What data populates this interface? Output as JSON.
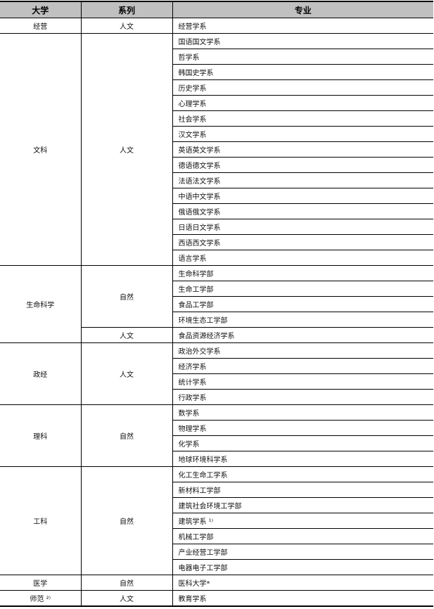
{
  "headers": [
    "大学",
    "系列",
    "专业"
  ],
  "groups": [
    {
      "college": "经营",
      "series": [
        {
          "name": "人文",
          "majors": [
            "经营学系"
          ]
        }
      ]
    },
    {
      "college": "文科",
      "series": [
        {
          "name": "人文",
          "majors": [
            "国语国文学系",
            "哲学系",
            "韩国史学系",
            "历史学系",
            "心理学系",
            "社会学系",
            "汉文学系",
            "英语英文学系",
            "德语德文学系",
            "法语法文学系",
            "中语中文学系",
            "俄语俄文学系",
            "日语日文学系",
            "西语西文学系",
            "语言学系"
          ]
        }
      ]
    },
    {
      "college": "生命科学",
      "series": [
        {
          "name": "自然",
          "majors": [
            "生命科学部",
            "生命工学部",
            "食品工学部",
            "环境生态工学部"
          ]
        },
        {
          "name": "人文",
          "majors": [
            "食品资源经济学系"
          ]
        }
      ]
    },
    {
      "college": "政经",
      "series": [
        {
          "name": "人文",
          "majors": [
            "政治外交学系",
            "经济学系",
            "统计学系",
            "行政学系"
          ]
        }
      ]
    },
    {
      "college": "理科",
      "series": [
        {
          "name": "自然",
          "majors": [
            "数学系",
            "物理学系",
            "化学系",
            "地球环境科学系"
          ]
        }
      ]
    },
    {
      "college": "工科",
      "series": [
        {
          "name": "自然",
          "majors": [
            "化工生命工学系",
            "新材料工学部",
            "建筑社会环境工学部",
            "建筑学系 ¹⁾",
            "机械工学部",
            "产业经营工学部",
            "电器电子工学部"
          ]
        }
      ]
    },
    {
      "college": "医学",
      "series": [
        {
          "name": "自然",
          "majors": [
            "医科大学*"
          ]
        }
      ]
    },
    {
      "college": "师范 ²⁾",
      "series": [
        {
          "name": "人文",
          "majors": [
            "教育学系"
          ]
        }
      ]
    }
  ]
}
